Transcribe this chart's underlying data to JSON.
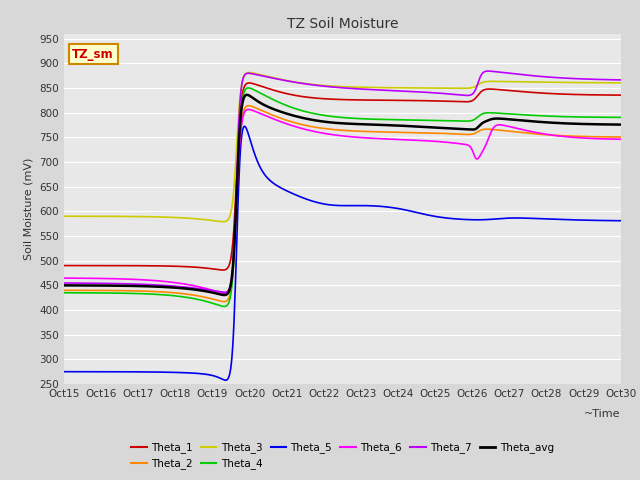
{
  "title": "TZ Soil Moisture",
  "xlabel": "~Time",
  "ylabel": "Soil Moisture (mV)",
  "ylim": [
    250,
    960
  ],
  "yticks": [
    250,
    300,
    350,
    400,
    450,
    500,
    550,
    600,
    650,
    700,
    750,
    800,
    850,
    900,
    950
  ],
  "xlim": [
    0,
    15
  ],
  "legend_label": "TZ_sm",
  "series": {
    "Theta_1": {
      "color": "#cc0000",
      "lw": 1.2
    },
    "Theta_2": {
      "color": "#ff8800",
      "lw": 1.2
    },
    "Theta_3": {
      "color": "#cccc00",
      "lw": 1.2
    },
    "Theta_4": {
      "color": "#00cc00",
      "lw": 1.2
    },
    "Theta_5": {
      "color": "#0000ee",
      "lw": 1.2
    },
    "Theta_6": {
      "color": "#ff00ff",
      "lw": 1.2
    },
    "Theta_7": {
      "color": "#bb00ff",
      "lw": 1.2
    },
    "Theta_avg": {
      "color": "#000000",
      "lw": 1.8
    }
  },
  "xtick_labels": [
    "Oct 15",
    "Oct 16",
    "Oct 17",
    "Oct 18",
    "Oct 19",
    "Oct 20",
    "Oct 21",
    "Oct 22",
    "Oct 23",
    "Oct 24",
    "Oct 25",
    "Oct 26",
    "Oct 27",
    "Oct 28",
    "Oct 29",
    "Oct 30"
  ],
  "irr1": 4.65,
  "irr2": 11.15,
  "fig_bg": "#d8d8d8",
  "plot_bg": "#e8e8e8"
}
